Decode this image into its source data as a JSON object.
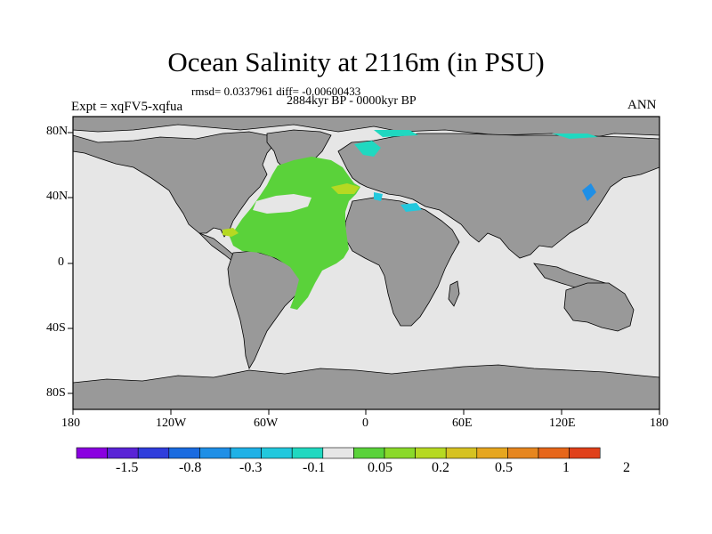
{
  "title": "Ocean Salinity at 2116m (in PSU)",
  "stats": "rmsd= 0.0337961 diff= -0.00600433",
  "period": "2884kyr BP - 0000kyr BP",
  "experiment": "Expt = xqFV5-xqfua",
  "season": "ANN",
  "map": {
    "lat_ticks": [
      "80N",
      "40N",
      "0",
      "40S",
      "80S"
    ],
    "lon_ticks": [
      "180",
      "120W",
      "60W",
      "0",
      "60E",
      "120E",
      "180"
    ],
    "colors": {
      "ocean": "#e6e6e6",
      "land": "#999999",
      "coast": "#000000"
    }
  },
  "colorbar": {
    "boxes": [
      "#8a00e0",
      "#5a23d6",
      "#2f3ddc",
      "#1a6be0",
      "#1f8fe6",
      "#1fb1e6",
      "#22c8dd",
      "#20d8c0",
      "#e6e6e6",
      "#5ad23a",
      "#8ad92a",
      "#b6d922",
      "#d6c222",
      "#e6a61f",
      "#e6861f",
      "#e6661a",
      "#e0401a"
    ],
    "labels": [
      "-1.5",
      "-0.8",
      "-0.3",
      "-0.1",
      "0.05",
      "0.2",
      "0.5",
      "1",
      "2"
    ]
  }
}
